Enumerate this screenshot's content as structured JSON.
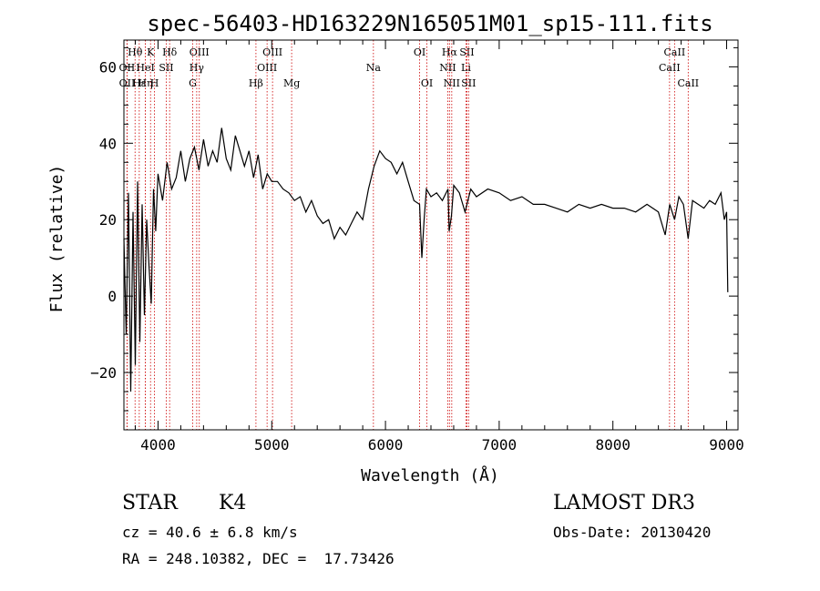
{
  "chart_data": {
    "type": "line",
    "title": "spec-56403-HD163229N165051M01_sp15-111.fits",
    "xlabel": "Wavelength (Å)",
    "ylabel": "Flux (relative)",
    "xlim": [
      3700,
      9100
    ],
    "ylim": [
      -35,
      67
    ],
    "x_ticks": [
      4000,
      5000,
      6000,
      7000,
      8000,
      9000
    ],
    "x_minor_step": 200,
    "y_ticks": [
      -20,
      0,
      20,
      40,
      60
    ],
    "y_minor_step": 5,
    "grid": false,
    "series": [
      {
        "name": "flux",
        "color": "#000000",
        "x": [
          3700,
          3720,
          3740,
          3760,
          3780,
          3800,
          3820,
          3840,
          3860,
          3880,
          3900,
          3920,
          3940,
          3960,
          3980,
          4000,
          4040,
          4080,
          4120,
          4160,
          4200,
          4240,
          4280,
          4320,
          4360,
          4400,
          4440,
          4480,
          4520,
          4560,
          4600,
          4640,
          4680,
          4720,
          4760,
          4800,
          4840,
          4880,
          4920,
          4960,
          5000,
          5050,
          5100,
          5150,
          5200,
          5250,
          5300,
          5350,
          5400,
          5450,
          5500,
          5550,
          5600,
          5650,
          5700,
          5750,
          5800,
          5850,
          5900,
          5950,
          6000,
          6050,
          6100,
          6150,
          6200,
          6250,
          6300,
          6320,
          6340,
          6360,
          6400,
          6450,
          6500,
          6550,
          6560,
          6580,
          6600,
          6650,
          6700,
          6750,
          6800,
          6900,
          7000,
          7100,
          7200,
          7300,
          7400,
          7500,
          7600,
          7700,
          7800,
          7900,
          8000,
          8100,
          8200,
          8300,
          8400,
          8460,
          8500,
          8542,
          8580,
          8620,
          8662,
          8700,
          8750,
          8800,
          8850,
          8900,
          8950,
          8980,
          9000,
          9010
        ],
        "values": [
          15,
          -10,
          27,
          -25,
          22,
          -18,
          30,
          -12,
          24,
          -5,
          20,
          8,
          -2,
          28,
          17,
          32,
          25,
          35,
          28,
          31,
          38,
          30,
          36,
          39,
          33,
          41,
          34,
          38,
          35,
          44,
          36,
          33,
          42,
          38,
          34,
          38,
          31,
          37,
          28,
          32,
          30,
          30,
          28,
          27,
          25,
          26,
          22,
          25,
          21,
          19,
          20,
          15,
          18,
          16,
          19,
          22,
          20,
          28,
          34,
          38,
          36,
          35,
          32,
          35,
          30,
          25,
          24,
          10,
          20,
          28,
          26,
          27,
          25,
          28,
          17,
          21,
          29,
          27,
          22,
          28,
          26,
          28,
          27,
          25,
          26,
          24,
          24,
          23,
          22,
          24,
          23,
          24,
          23,
          23,
          22,
          24,
          22,
          16,
          24,
          20,
          26,
          24,
          15,
          25,
          24,
          23,
          25,
          24,
          27,
          20,
          22,
          1
        ]
      }
    ],
    "line_markers": [
      {
        "label": "Hθ",
        "x": 3798,
        "row": 1
      },
      {
        "label": "OII",
        "x": 3727,
        "row": 2
      },
      {
        "label": "OII",
        "x": 3728,
        "row": 3
      },
      {
        "label": "Hε",
        "x": 3835,
        "row": 3
      },
      {
        "label": "HeI",
        "x": 3889,
        "row": 2
      },
      {
        "label": "Hη",
        "x": 3889,
        "row": 3
      },
      {
        "label": "K",
        "x": 3934,
        "row": 1
      },
      {
        "label": "SII",
        "x": 4072,
        "row": 2
      },
      {
        "label": "H",
        "x": 3969,
        "row": 3
      },
      {
        "label": "Hδ",
        "x": 4102,
        "row": 1
      },
      {
        "label": "OIII",
        "x": 4363,
        "row": 1
      },
      {
        "label": "Hγ",
        "x": 4340,
        "row": 2
      },
      {
        "label": "G",
        "x": 4305,
        "row": 3
      },
      {
        "label": "Hβ",
        "x": 4861,
        "row": 3
      },
      {
        "label": "OIII",
        "x": 5007,
        "row": 1
      },
      {
        "label": "OIII",
        "x": 4959,
        "row": 2
      },
      {
        "label": "Mg",
        "x": 5175,
        "row": 3
      },
      {
        "label": "Na",
        "x": 5894,
        "row": 2
      },
      {
        "label": "OI",
        "x": 6300,
        "row": 1
      },
      {
        "label": "OI",
        "x": 6364,
        "row": 3
      },
      {
        "label": "Hα",
        "x": 6563,
        "row": 1
      },
      {
        "label": "NII",
        "x": 6548,
        "row": 2
      },
      {
        "label": "NII",
        "x": 6583,
        "row": 3
      },
      {
        "label": "SII",
        "x": 6716,
        "row": 1
      },
      {
        "label": "Li",
        "x": 6708,
        "row": 2
      },
      {
        "label": "SII",
        "x": 6731,
        "row": 3
      },
      {
        "label": "CaII",
        "x": 8542,
        "row": 1
      },
      {
        "label": "CaII",
        "x": 8498,
        "row": 2
      },
      {
        "label": "CaII",
        "x": 8662,
        "row": 3
      }
    ]
  },
  "info": {
    "object_type": "STAR",
    "subclass": "K4",
    "survey": "LAMOST DR3",
    "cz": "cz = 40.6 ± 6.8 km/s",
    "obs_date": "Obs-Date: 20130420",
    "coords": "RA = 248.10382, DEC =  17.73426"
  }
}
